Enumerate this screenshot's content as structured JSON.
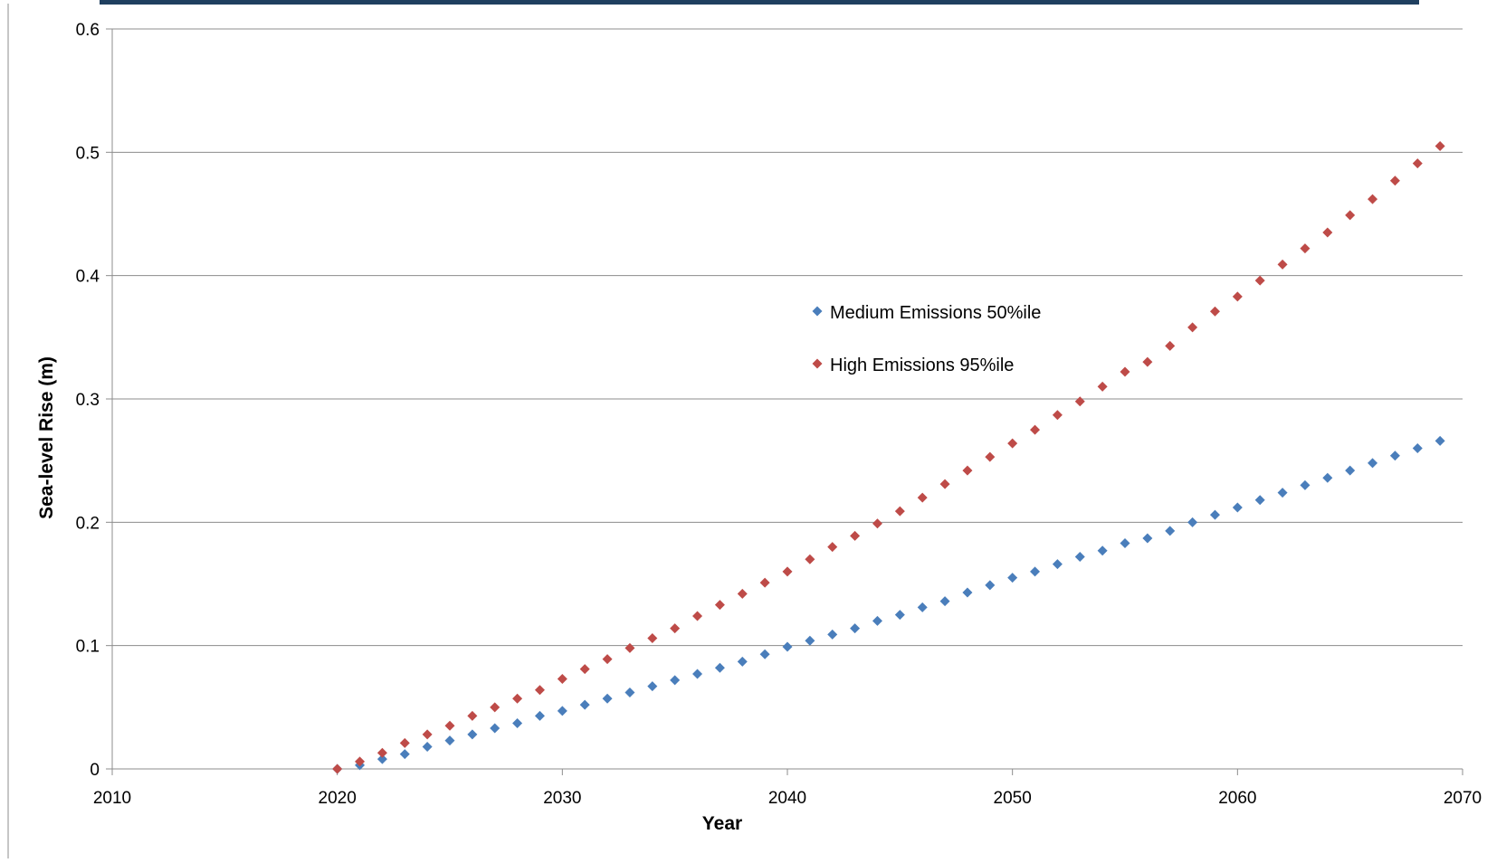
{
  "chart_data": {
    "type": "scatter",
    "title": "",
    "xlabel": "Year",
    "ylabel": "Sea-level Rise (m)",
    "xlim": [
      2010,
      2070
    ],
    "ylim": [
      0,
      0.6
    ],
    "xticks": [
      "2010",
      "2020",
      "2030",
      "2040",
      "2050",
      "2060",
      "2070"
    ],
    "yticks": [
      "0",
      "0.1",
      "0.2",
      "0.3",
      "0.4",
      "0.5",
      "0.6"
    ],
    "grid": "horizontal",
    "legend_position": "center-right",
    "series": [
      {
        "name": "Medium Emissions 50%ile",
        "color": "#4a7ebb",
        "marker": "diamond",
        "x": [
          2020,
          2021,
          2022,
          2023,
          2024,
          2025,
          2026,
          2027,
          2028,
          2029,
          2030,
          2031,
          2032,
          2033,
          2034,
          2035,
          2036,
          2037,
          2038,
          2039,
          2040,
          2041,
          2042,
          2043,
          2044,
          2045,
          2046,
          2047,
          2048,
          2049,
          2050,
          2051,
          2052,
          2053,
          2054,
          2055,
          2056,
          2057,
          2058,
          2059,
          2060,
          2061,
          2062,
          2063,
          2064,
          2065,
          2066,
          2067,
          2068,
          2069
        ],
        "y": [
          0,
          0.003,
          0.008,
          0.012,
          0.018,
          0.023,
          0.028,
          0.033,
          0.037,
          0.043,
          0.047,
          0.052,
          0.057,
          0.062,
          0.067,
          0.072,
          0.077,
          0.082,
          0.087,
          0.093,
          0.099,
          0.104,
          0.109,
          0.114,
          0.12,
          0.125,
          0.131,
          0.136,
          0.143,
          0.149,
          0.155,
          0.16,
          0.166,
          0.172,
          0.177,
          0.183,
          0.187,
          0.193,
          0.2,
          0.206,
          0.212,
          0.218,
          0.224,
          0.23,
          0.236,
          0.242,
          0.248,
          0.254,
          0.26,
          0.266
        ]
      },
      {
        "name": "High Emissions 95%ile",
        "color": "#be4b48",
        "marker": "diamond",
        "x": [
          2020,
          2021,
          2022,
          2023,
          2024,
          2025,
          2026,
          2027,
          2028,
          2029,
          2030,
          2031,
          2032,
          2033,
          2034,
          2035,
          2036,
          2037,
          2038,
          2039,
          2040,
          2041,
          2042,
          2043,
          2044,
          2045,
          2046,
          2047,
          2048,
          2049,
          2050,
          2051,
          2052,
          2053,
          2054,
          2055,
          2056,
          2057,
          2058,
          2059,
          2060,
          2061,
          2062,
          2063,
          2064,
          2065,
          2066,
          2067,
          2068,
          2069
        ],
        "y": [
          0,
          0.006,
          0.013,
          0.021,
          0.028,
          0.035,
          0.043,
          0.05,
          0.057,
          0.064,
          0.073,
          0.081,
          0.089,
          0.098,
          0.106,
          0.114,
          0.124,
          0.133,
          0.142,
          0.151,
          0.16,
          0.17,
          0.18,
          0.189,
          0.199,
          0.209,
          0.22,
          0.231,
          0.242,
          0.253,
          0.264,
          0.275,
          0.287,
          0.298,
          0.31,
          0.322,
          0.33,
          0.343,
          0.358,
          0.371,
          0.383,
          0.396,
          0.409,
          0.422,
          0.435,
          0.449,
          0.462,
          0.477,
          0.491,
          0.505
        ]
      }
    ]
  },
  "colors": {
    "gridline": "#8c8c8c",
    "axis": "#8c8c8c",
    "top_banner": "#1f3f5f"
  }
}
